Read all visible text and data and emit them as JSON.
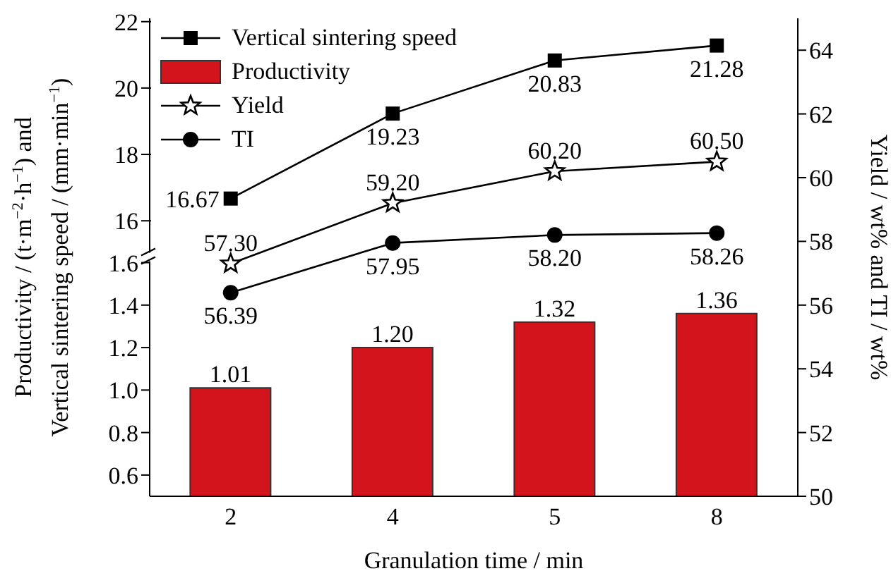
{
  "chart_data": {
    "type": "line",
    "xlabel": "Granulation time / min",
    "ylabel": "Productivity / (t·m$^{−2}$·h$^{−1}$) and Vertical sintering speed / (mm·min$^{−1}$)",
    "y2label": "Yield / wt% and TI / wt%",
    "categories": [
      "2",
      "4",
      "5",
      "8"
    ],
    "series": [
      {
        "name": "Vertical sintering speed",
        "color": "#000000",
        "axis": "y3",
        "marker": "square",
        "values": [
          16.67,
          19.23,
          20.83,
          21.28
        ],
        "value_labels": [
          "16.67",
          "19.23",
          "20.83",
          "21.28"
        ]
      },
      {
        "name": "Productivity",
        "type": "bar",
        "color": "#d4141c",
        "axis": "y",
        "values": [
          1.01,
          1.2,
          1.32,
          1.36
        ],
        "value_labels": [
          "1.01",
          "1.20",
          "1.32",
          "1.36"
        ]
      },
      {
        "name": "Yield",
        "color": "#000000",
        "axis": "y2",
        "marker": "star",
        "values": [
          57.3,
          59.2,
          60.2,
          60.5
        ],
        "value_labels": [
          "57.30",
          "59.20",
          "60.20",
          "60.50"
        ]
      },
      {
        "name": "TI",
        "color": "#000000",
        "axis": "y2",
        "marker": "circle",
        "values": [
          56.39,
          57.95,
          58.2,
          58.26
        ],
        "value_labels": [
          "56.39",
          "57.95",
          "58.20",
          "58.26"
        ]
      }
    ],
    "ylim": [
      0.5,
      2.75
    ],
    "yticks": [
      0.6,
      0.8,
      {
        "value": 1,
        "label": "1.0"
      },
      1.2,
      1.4,
      1.6
    ],
    "y3lim": [
      7.7,
      22.1
    ],
    "y3ticks": [
      16,
      18,
      20,
      22
    ],
    "y2lim": [
      50,
      65
    ],
    "y2ticks": [
      50,
      52,
      54,
      56,
      58,
      60,
      62,
      64
    ],
    "legend": "top left"
  }
}
